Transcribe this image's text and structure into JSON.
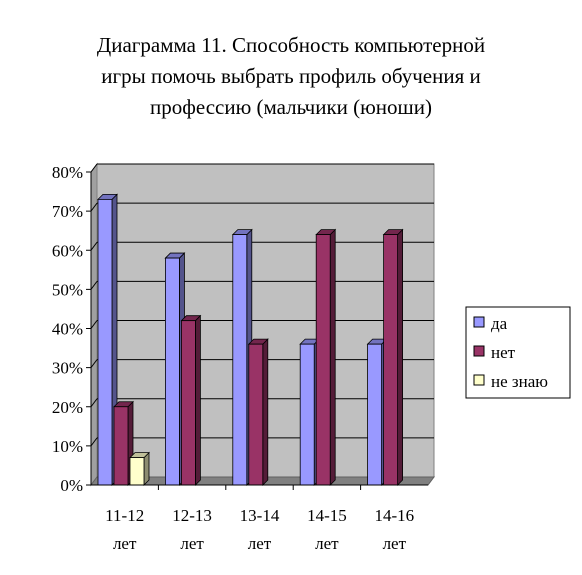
{
  "chart_data": {
    "type": "bar",
    "title": "Диаграмма 11. Способность компьютерной\nигры помочь  выбрать профиль обучения и\nпрофессию (мальчики (юноши)",
    "categories": [
      [
        "11-12",
        "лет"
      ],
      [
        "12-13",
        "лет"
      ],
      [
        "13-14",
        "лет"
      ],
      [
        "14-15",
        "лет"
      ],
      [
        "14-16",
        "лет"
      ]
    ],
    "series": [
      {
        "name": "да",
        "values": [
          73,
          58,
          64,
          36,
          36
        ]
      },
      {
        "name": "нет",
        "values": [
          20,
          42,
          36,
          64,
          64
        ]
      },
      {
        "name": "не знаю",
        "values": [
          7,
          0,
          0,
          0,
          0
        ]
      }
    ],
    "y_ticks": [
      "0%",
      "10%",
      "20%",
      "30%",
      "40%",
      "50%",
      "60%",
      "70%",
      "80%"
    ],
    "ylim": [
      0,
      80
    ],
    "grid": true,
    "legend": "right",
    "colors": {
      "series": [
        "#9999ff",
        "#993366",
        "#ffffcc"
      ],
      "plot_background": "#c0c0c0",
      "gridline": "#000000"
    }
  }
}
